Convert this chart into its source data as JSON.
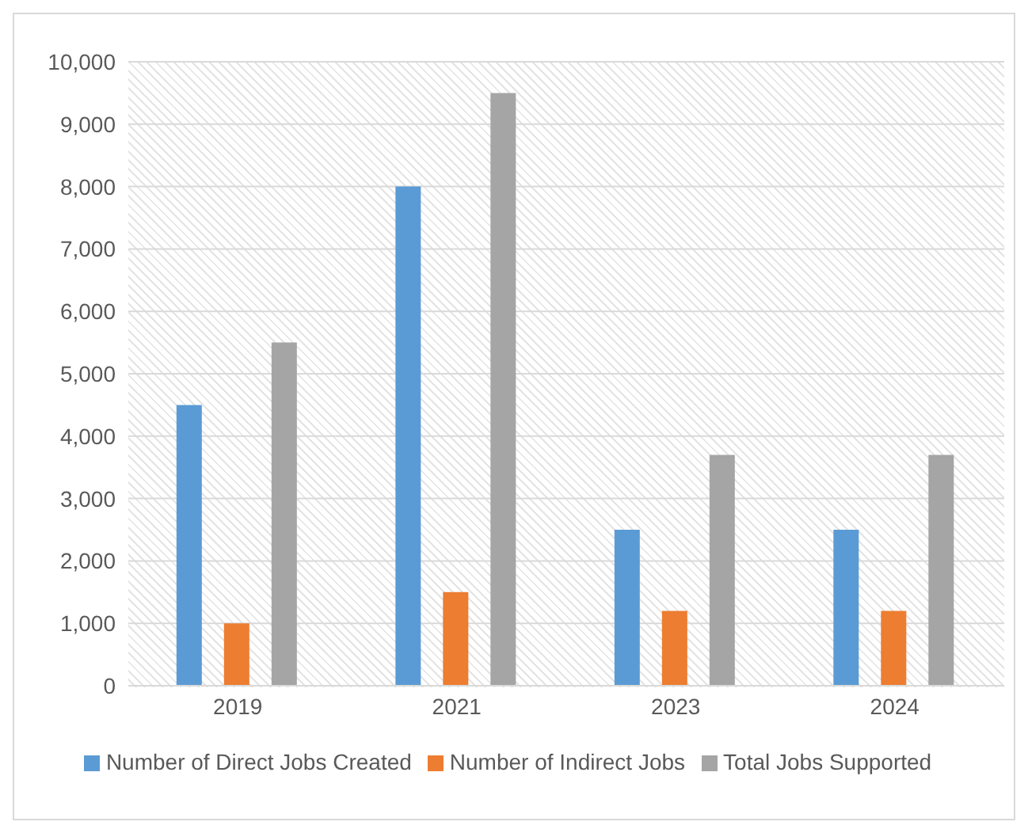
{
  "chart_data": {
    "type": "bar",
    "categories": [
      "2019",
      "2021",
      "2023",
      "2024"
    ],
    "series": [
      {
        "name": "Number of Direct Jobs Created",
        "color": "#5b9bd5",
        "values": [
          4500,
          8000,
          2500,
          2500
        ]
      },
      {
        "name": "Number of Indirect Jobs",
        "color": "#ed7d31",
        "values": [
          1000,
          1500,
          1200,
          1200
        ]
      },
      {
        "name": "Total Jobs Supported",
        "color": "#a5a5a5",
        "values": [
          5500,
          9500,
          3700,
          3700
        ]
      }
    ],
    "ylim": [
      0,
      10000
    ],
    "yticks": [
      0,
      {
        "value": 1000,
        "label": "1,000"
      },
      {
        "value": 2000,
        "label": "2,000"
      },
      {
        "value": 3000,
        "label": "3,000"
      },
      {
        "value": 4000,
        "label": "4,000"
      },
      {
        "value": 5000,
        "label": "5,000"
      },
      {
        "value": 6000,
        "label": "6,000"
      },
      {
        "value": 7000,
        "label": "7,000"
      },
      {
        "value": 8000,
        "label": "8,000"
      },
      {
        "value": 9000,
        "label": "9,000"
      },
      {
        "value": 10000,
        "label": "10,000"
      }
    ],
    "grid": "y",
    "legend": "bottom"
  }
}
